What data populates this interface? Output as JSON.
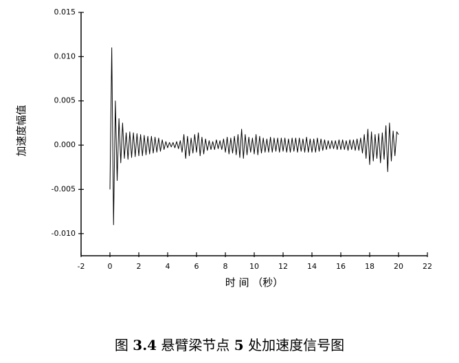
{
  "chart_data": {
    "type": "line",
    "xlabel": "时 间 （秒）",
    "ylabel": "加速度幅值",
    "caption": [
      "图 ",
      "3.4",
      " 悬臂梁节点 ",
      "5",
      " 处加速度信号图"
    ],
    "xlim": [
      -2,
      22
    ],
    "xticks": [
      -2,
      0,
      2,
      4,
      6,
      8,
      10,
      12,
      14,
      16,
      18,
      20,
      22
    ],
    "ylim": [
      -0.0125,
      0.015
    ],
    "yticks": [
      {
        "value": -0.01,
        "label": "-0.010"
      },
      -0.005,
      {
        "value": 0,
        "label": "0.000"
      },
      0.005,
      {
        "value": 0.01,
        "label": "0.010"
      },
      0.015
    ],
    "color": "#000000",
    "x": [
      0,
      0.125,
      0.25,
      0.375,
      0.5,
      0.625,
      0.75,
      0.875,
      1,
      1.125,
      1.25,
      1.375,
      1.5,
      1.625,
      1.75,
      1.875,
      2,
      2.125,
      2.25,
      2.375,
      2.5,
      2.625,
      2.75,
      2.875,
      3,
      3.125,
      3.25,
      3.375,
      3.5,
      3.625,
      3.75,
      3.875,
      4,
      4.125,
      4.25,
      4.375,
      4.5,
      4.625,
      4.75,
      4.875,
      5,
      5.125,
      5.25,
      5.375,
      5.5,
      5.625,
      5.75,
      5.875,
      6,
      6.125,
      6.25,
      6.375,
      6.5,
      6.625,
      6.75,
      6.875,
      7,
      7.125,
      7.25,
      7.375,
      7.5,
      7.625,
      7.75,
      7.875,
      8,
      8.125,
      8.25,
      8.375,
      8.5,
      8.625,
      8.75,
      8.875,
      9,
      9.125,
      9.25,
      9.375,
      9.5,
      9.625,
      9.75,
      9.875,
      10,
      10.125,
      10.25,
      10.375,
      10.5,
      10.625,
      10.75,
      10.875,
      11,
      11.125,
      11.25,
      11.375,
      11.5,
      11.625,
      11.75,
      11.875,
      12,
      12.125,
      12.25,
      12.375,
      12.5,
      12.625,
      12.75,
      12.875,
      13,
      13.125,
      13.25,
      13.375,
      13.5,
      13.625,
      13.75,
      13.875,
      14,
      14.125,
      14.25,
      14.375,
      14.5,
      14.625,
      14.75,
      14.875,
      15,
      15.125,
      15.25,
      15.375,
      15.5,
      15.625,
      15.75,
      15.875,
      16,
      16.125,
      16.25,
      16.375,
      16.5,
      16.625,
      16.75,
      16.875,
      17,
      17.125,
      17.25,
      17.375,
      17.5,
      17.625,
      17.75,
      17.875,
      18,
      18.125,
      18.25,
      18.375,
      18.5,
      18.625,
      18.75,
      18.875,
      19,
      19.125,
      19.25,
      19.375,
      19.5,
      19.625,
      19.75,
      19.875,
      20
    ],
    "values": [
      -0.005,
      0.011,
      -0.009,
      0.005,
      -0.004,
      0.003,
      -0.002,
      0.0025,
      -0.0015,
      0.0014,
      -0.0016,
      0.0015,
      -0.0014,
      0.0014,
      -0.0013,
      0.0013,
      -0.0012,
      0.0012,
      -0.0012,
      0.0011,
      -0.0011,
      0.001,
      -0.001,
      0.001,
      -0.0009,
      0.0009,
      -0.0008,
      0.0008,
      -0.0007,
      0.0006,
      -0.0005,
      0.0004,
      -0.0003,
      0.0003,
      -0.0002,
      0.0003,
      -0.0003,
      0.0004,
      -0.0004,
      0.0005,
      -0.0008,
      0.0012,
      -0.0015,
      0.001,
      -0.0012,
      0.0008,
      -0.0009,
      0.0012,
      -0.0008,
      0.0014,
      -0.0012,
      0.0009,
      -0.001,
      0.0007,
      -0.0006,
      0.0005,
      -0.0005,
      0.0004,
      -0.0005,
      0.0006,
      -0.0004,
      0.0005,
      -0.0005,
      0.0007,
      -0.0008,
      0.0009,
      -0.001,
      0.0008,
      -0.0009,
      0.001,
      -0.0011,
      0.0012,
      -0.0014,
      0.0018,
      -0.0015,
      0.0012,
      -0.0011,
      0.0009,
      -0.0008,
      0.0008,
      -0.001,
      0.0012,
      -0.0011,
      0.001,
      -0.0009,
      0.0008,
      -0.0008,
      0.0007,
      -0.0008,
      0.0009,
      -0.0008,
      0.0008,
      -0.0007,
      0.0008,
      -0.0008,
      0.0008,
      -0.0007,
      0.0008,
      -0.0008,
      0.0007,
      -0.0008,
      0.0008,
      -0.0007,
      0.0008,
      -0.0008,
      0.0008,
      -0.0007,
      0.0007,
      -0.0008,
      0.0009,
      -0.0008,
      0.0007,
      -0.0008,
      0.0007,
      -0.0008,
      0.0008,
      -0.0007,
      0.0007,
      -0.0006,
      0.0006,
      -0.0005,
      0.0005,
      -0.0004,
      0.0005,
      -0.0004,
      0.0005,
      -0.0005,
      0.0006,
      -0.0005,
      0.0006,
      -0.0005,
      0.0005,
      -0.0006,
      0.0006,
      -0.0005,
      0.0006,
      -0.0006,
      0.0007,
      -0.0006,
      0.0008,
      -0.0009,
      0.0012,
      -0.0015,
      0.0018,
      -0.0022,
      0.0015,
      -0.0018,
      0.0012,
      -0.0015,
      0.0013,
      -0.002,
      0.0014,
      -0.0016,
      0.0022,
      -0.003,
      0.0025,
      -0.0018,
      0.0016,
      -0.0012,
      0.0015,
      0.0012
    ]
  }
}
